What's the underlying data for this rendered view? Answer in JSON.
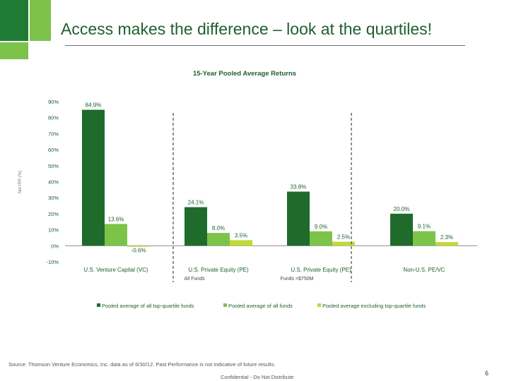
{
  "slide": {
    "title": "Access makes the difference – look at the quartiles!",
    "source": "Source: Thomson Venture Economics, Inc. data as of 6/30/12. Past Performance is not indicative of future results.",
    "footer": "Confidential - Do Not Distribute",
    "page_number": "6"
  },
  "colors": {
    "dark_green": "#1e6b2c",
    "mid_green": "#7cc34a",
    "light_green": "#c3d83a",
    "brand_dark": "#1e7b33",
    "brand_light": "#7dc24b"
  },
  "chart_data": {
    "type": "bar",
    "title": "15-Year Pooled Average Returns",
    "ylabel": "Net IRR (%)",
    "ylim": [
      -10,
      90
    ],
    "yticks": [
      -10,
      0,
      10,
      20,
      30,
      40,
      50,
      60,
      70,
      80,
      90
    ],
    "ytick_labels": [
      "-10%",
      "0%",
      "10%",
      "20%",
      "30%",
      "40%",
      "50%",
      "60%",
      "70%",
      "80%",
      "90%"
    ],
    "categories": [
      "U.S. Venture Capital (VC)",
      "U.S. Private Equity (PE)",
      "U.S. Private Equity (PE)",
      "Non-U.S. PE/VC"
    ],
    "category_sublabels": [
      "",
      "All Funds",
      "Funds <$750M",
      ""
    ],
    "series": [
      {
        "name": "Pooled average of all top-quartile funds",
        "values": [
          84.9,
          24.1,
          33.8,
          20.0
        ],
        "labels": [
          "84.9%",
          "24.1%",
          "33.8%",
          "20.0%"
        ]
      },
      {
        "name": "Pooled average of all funds",
        "values": [
          13.6,
          8.0,
          9.0,
          9.1
        ],
        "labels": [
          "13.6%",
          "8.0%",
          "9.0%",
          "9.1%"
        ]
      },
      {
        "name": "Pooled average excluding top-quartile funds",
        "values": [
          -0.6,
          3.5,
          2.5,
          2.3
        ],
        "labels": [
          "-0.6%",
          "3.5%",
          "2.5%",
          "2.3%"
        ]
      }
    ],
    "legend_position": "bottom",
    "grid": false
  }
}
